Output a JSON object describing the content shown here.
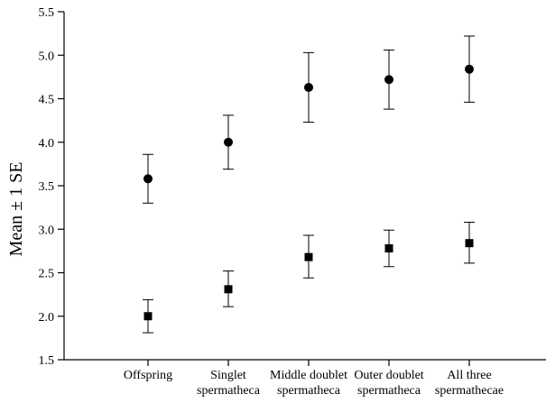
{
  "chart_data": {
    "type": "scatter",
    "title": "",
    "xlabel": "",
    "ylabel": "Mean ± 1 SE",
    "ylim": [
      1.5,
      5.5
    ],
    "yticks": [
      "1.5",
      "2.0",
      "2.5",
      "3.0",
      "3.5",
      "4.0",
      "4.5",
      "5.0",
      "5.5"
    ],
    "categories": [
      [
        "Offspring"
      ],
      [
        "Singlet",
        "spermatheca"
      ],
      [
        "Middle doublet",
        "spermatheca"
      ],
      [
        "Outer doublet",
        "spermatheca"
      ],
      [
        "All three",
        "spermathecae"
      ]
    ],
    "series": [
      {
        "marker": "circle",
        "values": [
          3.58,
          4.0,
          4.63,
          4.72,
          4.84
        ],
        "err_low": [
          3.3,
          3.69,
          4.23,
          4.38,
          4.46
        ],
        "err_high": [
          3.86,
          4.31,
          5.03,
          5.06,
          5.22
        ]
      },
      {
        "marker": "square",
        "values": [
          2.0,
          2.31,
          2.68,
          2.78,
          2.84
        ],
        "err_low": [
          1.81,
          2.11,
          2.44,
          2.57,
          2.61
        ],
        "err_high": [
          2.19,
          2.52,
          2.93,
          2.99,
          3.08
        ]
      }
    ],
    "grid": false,
    "legend": "none"
  }
}
